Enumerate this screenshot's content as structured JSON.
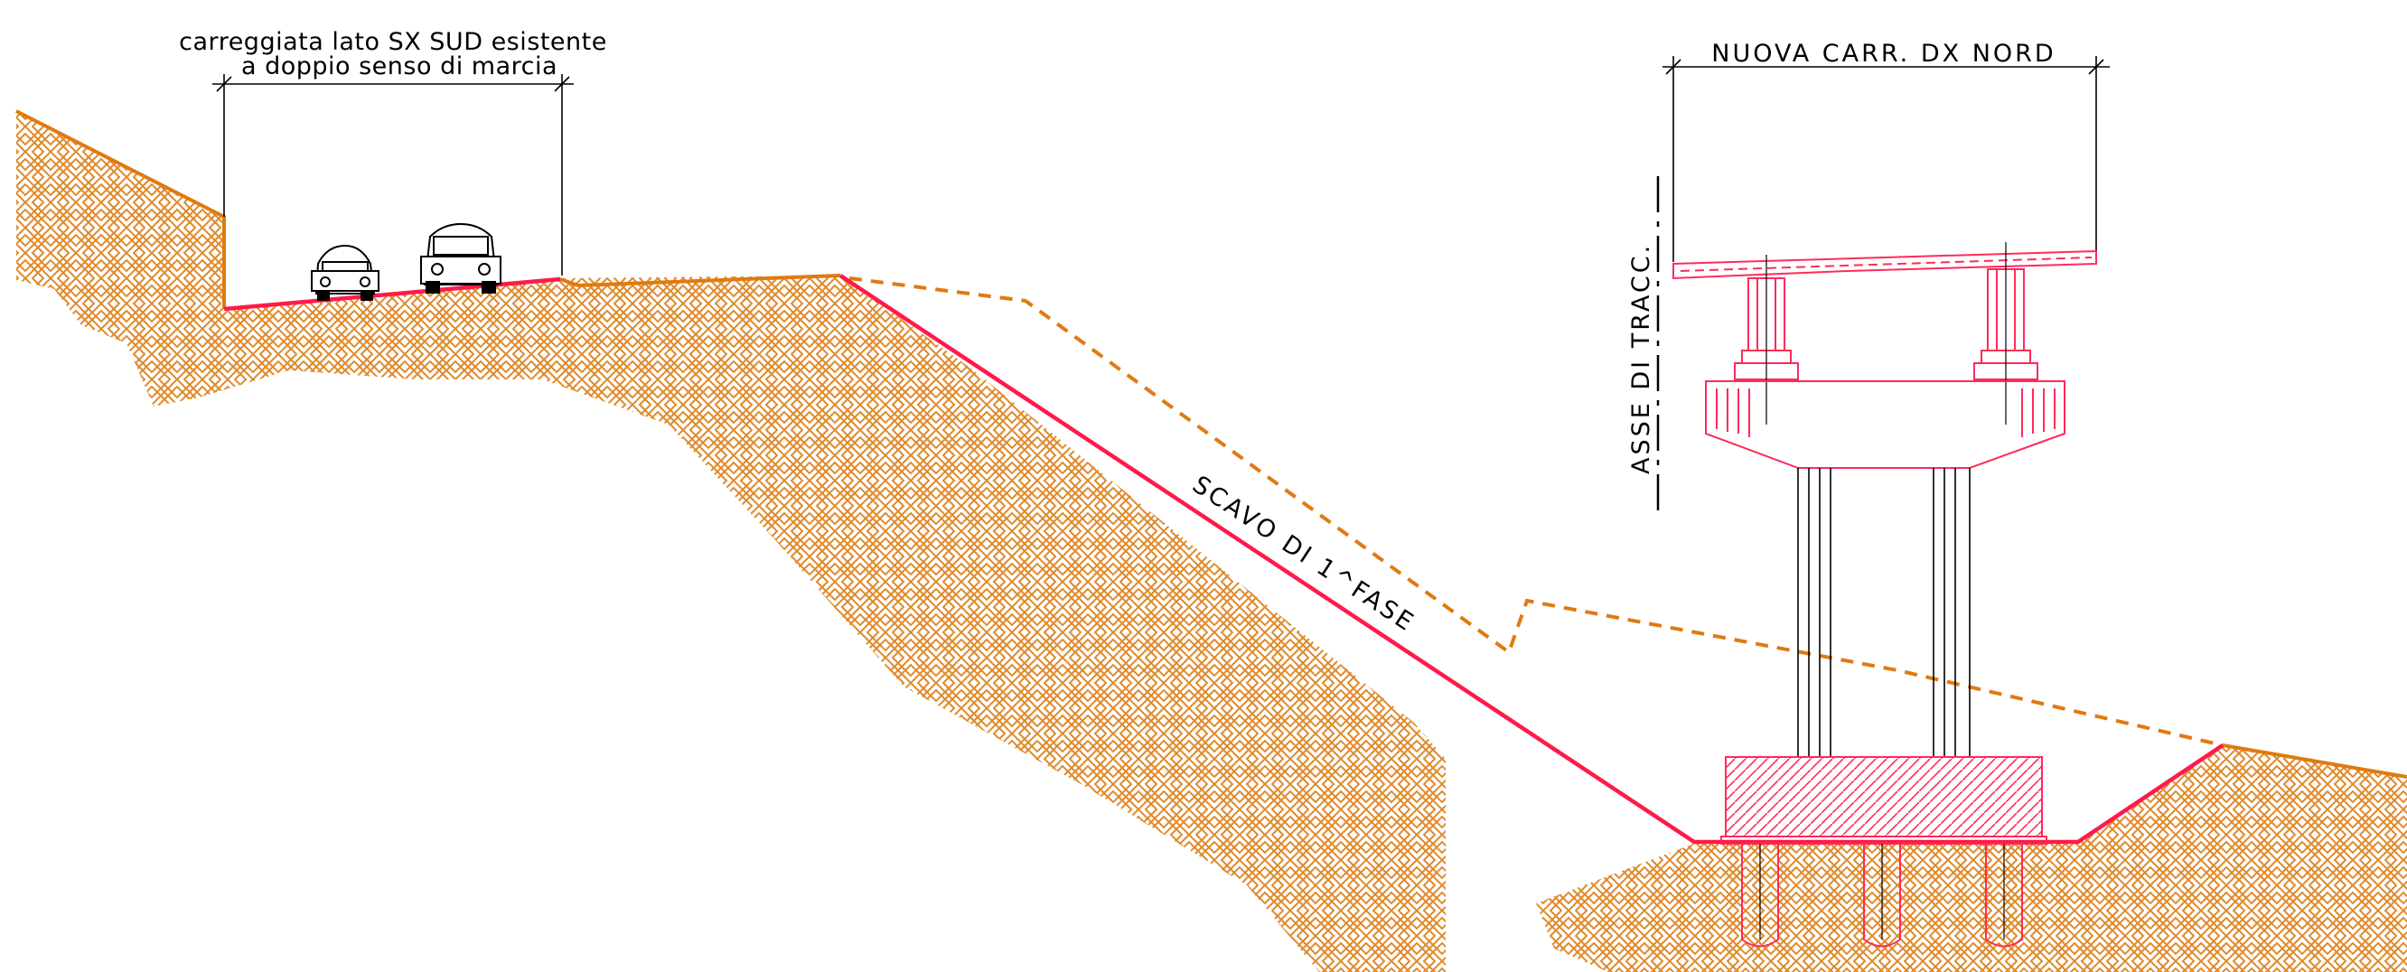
{
  "labels": {
    "existing_road_line1": "carreggiata lato SX SUD esistente",
    "existing_road_line2": "a doppio senso di marcia",
    "new_road": "NUOVA CARR. DX NORD",
    "axis": "ASSE DI TRACC.",
    "excavation": "SCAVO DI 1^FASE"
  },
  "colors": {
    "terrain_hatch": "#e08a2a",
    "ground_line": "#e07a10",
    "excavation_line": "#ff1a4a",
    "structure": "#ff2a5a",
    "dimension": "#000000"
  }
}
